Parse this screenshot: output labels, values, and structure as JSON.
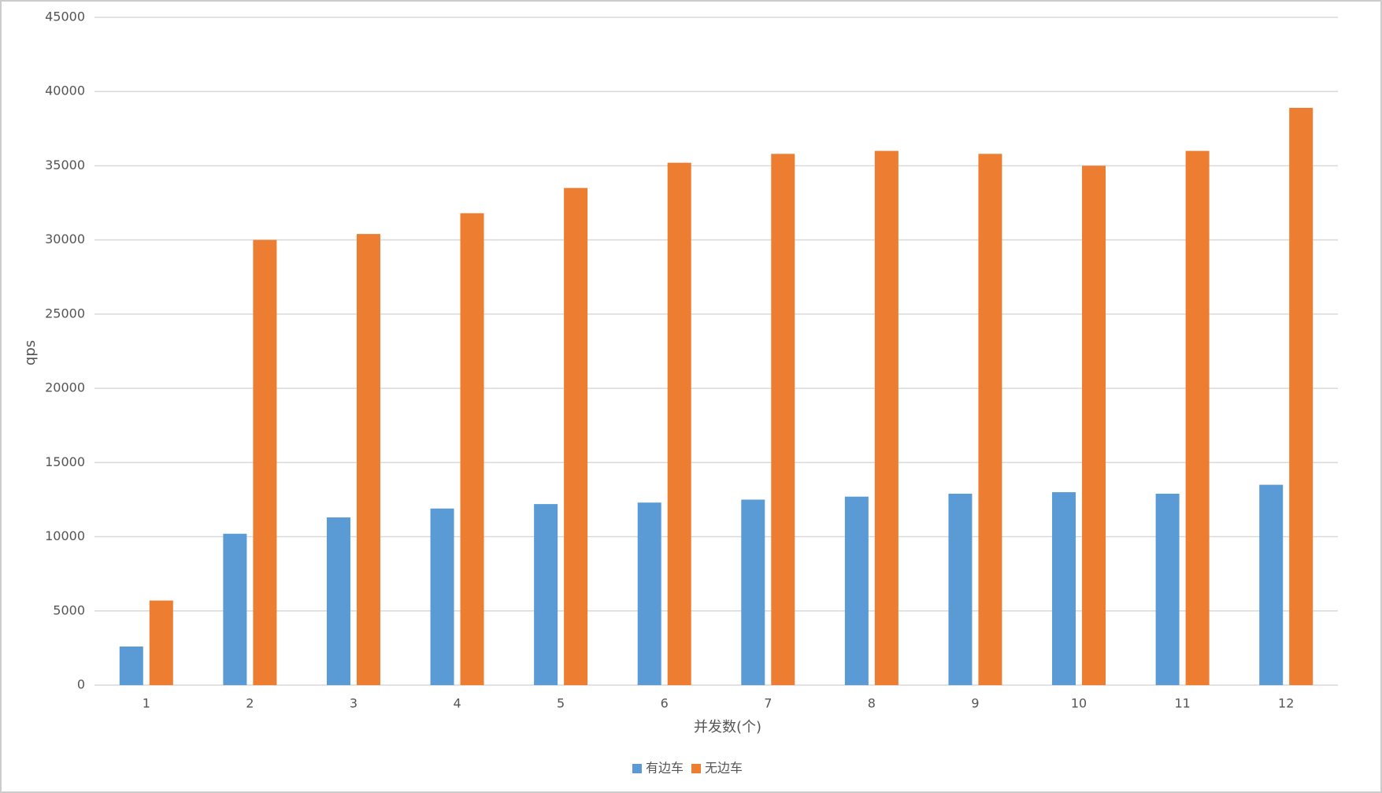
{
  "chart_data": {
    "type": "bar",
    "x_label": "并发数(个)",
    "y_label": "qps",
    "categories": [
      "1",
      "2",
      "3",
      "4",
      "5",
      "6",
      "7",
      "8",
      "9",
      "10",
      "11",
      "12"
    ],
    "series": [
      {
        "name": "有边车",
        "color": "#5b9bd5",
        "values": [
          2600,
          10200,
          11300,
          11900,
          12200,
          12300,
          12500,
          12700,
          12900,
          13000,
          12900,
          13500
        ]
      },
      {
        "name": "无边车",
        "color": "#ed7d31",
        "values": [
          5700,
          30000,
          30400,
          31800,
          33500,
          35200,
          35800,
          36000,
          35800,
          35000,
          36000,
          38900
        ]
      }
    ],
    "ylim": [
      0,
      45000
    ],
    "yticks": [
      0,
      5000,
      10000,
      15000,
      20000,
      25000,
      30000,
      35000,
      40000,
      45000
    ],
    "grid": true,
    "legend": "bottom"
  }
}
